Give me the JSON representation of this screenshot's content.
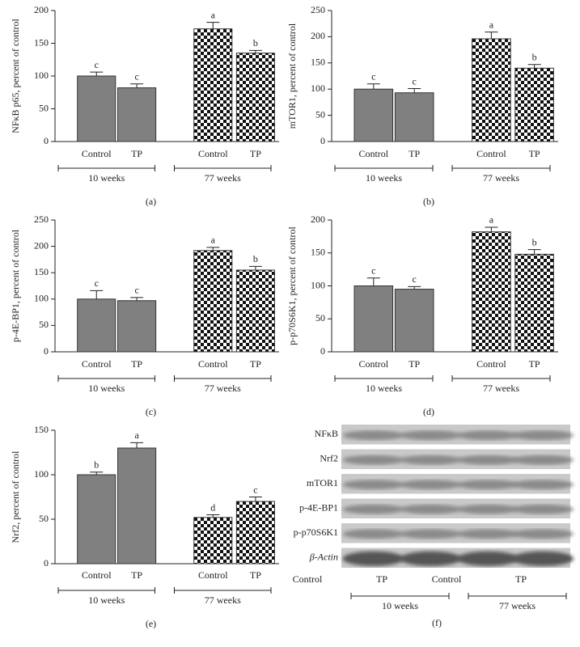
{
  "chart_data": [
    {
      "type": "bar",
      "panel": "(a)",
      "ylabel": "NFκB p65, percent of control",
      "categories": [
        "Control",
        "TP",
        "Control",
        "TP"
      ],
      "values": [
        100,
        82,
        172,
        135
      ],
      "errors": [
        6,
        6,
        10,
        4
      ],
      "annotations": [
        "c",
        "c",
        "a",
        "b"
      ],
      "groups": [
        "10 weeks",
        "77 weeks"
      ],
      "bar_styles": [
        "solid",
        "solid",
        "checker",
        "checker"
      ],
      "color": "#808080",
      "ylim": [
        0,
        200
      ],
      "yticks": [
        0,
        50,
        100,
        150,
        200
      ]
    },
    {
      "type": "bar",
      "panel": "(b)",
      "ylabel": "mTOR1, percent of control",
      "categories": [
        "Control",
        "TP",
        "Control",
        "TP"
      ],
      "values": [
        100,
        93,
        196,
        140
      ],
      "errors": [
        10,
        8,
        13,
        7
      ],
      "annotations": [
        "c",
        "c",
        "a",
        "b"
      ],
      "groups": [
        "10 weeks",
        "77 weeks"
      ],
      "bar_styles": [
        "solid",
        "solid",
        "checker",
        "checker"
      ],
      "color": "#808080",
      "ylim": [
        0,
        250
      ],
      "yticks": [
        0,
        50,
        100,
        150,
        200,
        250
      ]
    },
    {
      "type": "bar",
      "panel": "(c)",
      "ylabel": "p-4E-BP1, percent of control",
      "categories": [
        "Control",
        "TP",
        "Control",
        "TP"
      ],
      "values": [
        100,
        97,
        192,
        155
      ],
      "errors": [
        16,
        6,
        6,
        7
      ],
      "annotations": [
        "c",
        "c",
        "a",
        "b"
      ],
      "groups": [
        "10 weeks",
        "77 weeks"
      ],
      "bar_styles": [
        "solid",
        "solid",
        "checker",
        "checker"
      ],
      "color": "#808080",
      "ylim": [
        0,
        250
      ],
      "yticks": [
        0,
        50,
        100,
        150,
        200,
        250
      ]
    },
    {
      "type": "bar",
      "panel": "(d)",
      "ylabel": "p-p70S6K1, percent of control",
      "categories": [
        "Control",
        "TP",
        "Control",
        "TP"
      ],
      "values": [
        100,
        95,
        182,
        148
      ],
      "errors": [
        12,
        4,
        7,
        7
      ],
      "annotations": [
        "c",
        "c",
        "a",
        "b"
      ],
      "groups": [
        "10 weeks",
        "77 weeks"
      ],
      "bar_styles": [
        "solid",
        "solid",
        "checker",
        "checker"
      ],
      "color": "#808080",
      "ylim": [
        0,
        200
      ],
      "yticks": [
        0,
        50,
        100,
        150,
        200
      ]
    },
    {
      "type": "bar",
      "panel": "(e)",
      "ylabel": "Nrf2, percent of control",
      "categories": [
        "Control",
        "TP",
        "Control",
        "TP"
      ],
      "values": [
        100,
        130,
        52,
        70
      ],
      "errors": [
        3,
        6,
        3,
        5
      ],
      "annotations": [
        "b",
        "a",
        "d",
        "c"
      ],
      "groups": [
        "10 weeks",
        "77 weeks"
      ],
      "bar_styles": [
        "solid",
        "solid",
        "checker",
        "checker"
      ],
      "color": "#808080",
      "ylim": [
        0,
        150
      ],
      "yticks": [
        0,
        50,
        100,
        150
      ]
    }
  ],
  "blot": {
    "panel": "(f)",
    "rows": [
      "NFκB",
      "Nrf2",
      "mTOR1",
      "p-4E-BP1",
      "p-p70S6K1",
      "β-Actin"
    ],
    "categories": [
      "Control",
      "TP",
      "Control",
      "TP"
    ],
    "groups": [
      "10 weeks",
      "77 weeks"
    ]
  }
}
